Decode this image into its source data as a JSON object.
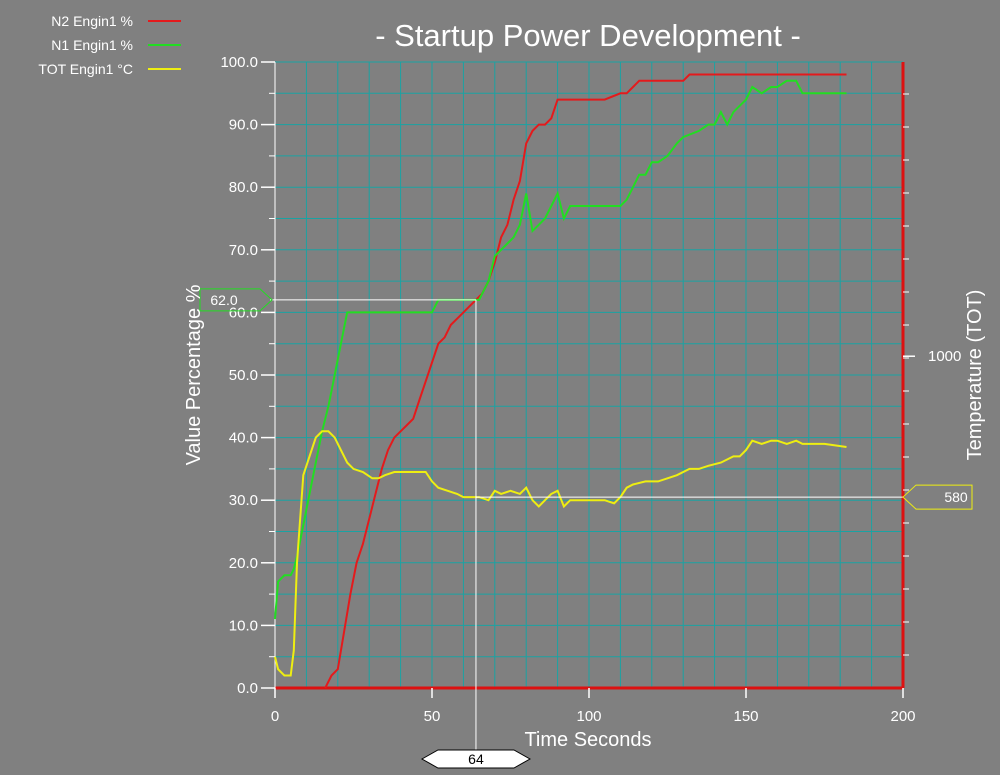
{
  "chart_data": {
    "type": "line",
    "title": "- Startup Power Development -",
    "xlabel": "Time Seconds",
    "ylabel": "Value Percentage %",
    "y2label": "Temperature (TOT)",
    "xlim": [
      0,
      200
    ],
    "ylim": [
      0,
      100
    ],
    "xticks": [
      0,
      50,
      100,
      150,
      200
    ],
    "yticks": [
      0,
      10,
      20,
      30,
      40,
      50,
      60,
      70,
      80,
      90,
      100
    ],
    "ytick_labels": [
      "0.0",
      "10.0",
      "20.0",
      "30.0",
      "40.0",
      "50.0",
      "60.0",
      "70.0",
      "80.0",
      "90.0",
      "100.0"
    ],
    "y2tick_label": "1000",
    "y2tick_value_pct": 53,
    "grid": true,
    "legend_position": "top-left",
    "colors": {
      "background": "#808080",
      "grid": "#1aa3a3",
      "axis": "#dd1111",
      "text": "#ffffff"
    },
    "series": [
      {
        "name": "N2 Engin1 %",
        "color": "#e41a1c",
        "x": [
          16,
          18,
          20,
          22,
          24,
          26,
          28,
          30,
          32,
          34,
          36,
          38,
          40,
          42,
          44,
          46,
          48,
          50,
          52,
          54,
          56,
          58,
          60,
          62,
          64,
          66,
          68,
          70,
          72,
          74,
          76,
          78,
          80,
          82,
          84,
          86,
          88,
          90,
          95,
          100,
          105,
          110,
          112,
          114,
          116,
          120,
          125,
          130,
          132,
          140,
          150,
          160,
          170,
          182
        ],
        "values": [
          0,
          2,
          3,
          9,
          15,
          20,
          23,
          27,
          31,
          35,
          38,
          40,
          41,
          42,
          43,
          46,
          49,
          52,
          55,
          56,
          58,
          59,
          60,
          61,
          62,
          63,
          65,
          68,
          72,
          74,
          78,
          81,
          87,
          89,
          90,
          90,
          91,
          94,
          94,
          94,
          94,
          95,
          95,
          96,
          97,
          97,
          97,
          97,
          98,
          98,
          98,
          98,
          98,
          98
        ]
      },
      {
        "name": "N1 Engin1 %",
        "color": "#22dd22",
        "x": [
          0,
          1,
          3,
          5,
          6,
          7,
          9,
          11,
          13,
          15,
          17,
          19,
          21,
          23,
          25,
          30,
          40,
          50,
          52,
          60,
          65,
          68,
          70,
          72,
          74,
          76,
          78,
          80,
          82,
          84,
          86,
          88,
          90,
          92,
          94,
          96,
          100,
          110,
          112,
          114,
          116,
          118,
          120,
          122,
          125,
          128,
          130,
          135,
          138,
          140,
          142,
          144,
          146,
          148,
          150,
          152,
          155,
          158,
          160,
          163,
          166,
          168,
          170,
          175,
          182
        ],
        "values": [
          11,
          17,
          18,
          18,
          19,
          21,
          26,
          31,
          36,
          41,
          45,
          50,
          55,
          60,
          60,
          60,
          60,
          60,
          62,
          62,
          62,
          65,
          69,
          70,
          71,
          72,
          74,
          79,
          73,
          74,
          75,
          77,
          79,
          75,
          77,
          77,
          77,
          77,
          78,
          80,
          82,
          82,
          84,
          84,
          85,
          87,
          88,
          89,
          90,
          90,
          92,
          90,
          92,
          93,
          94,
          96,
          95,
          96,
          96,
          97,
          97,
          95,
          95,
          95,
          95
        ]
      },
      {
        "name": "TOT Engin1 °C",
        "color": "#eeee11",
        "x": [
          0,
          1,
          3,
          5,
          6,
          7,
          9,
          11,
          13,
          15,
          17,
          19,
          21,
          23,
          25,
          28,
          31,
          33,
          35,
          38,
          40,
          45,
          48,
          50,
          52,
          55,
          58,
          60,
          62,
          65,
          68,
          70,
          72,
          75,
          78,
          80,
          82,
          84,
          86,
          88,
          90,
          92,
          94,
          97,
          100,
          105,
          108,
          110,
          112,
          114,
          118,
          122,
          125,
          128,
          132,
          135,
          138,
          142,
          146,
          148,
          150,
          152,
          155,
          158,
          160,
          163,
          166,
          168,
          170,
          175,
          182
        ],
        "values": [
          5,
          3,
          2,
          2,
          6,
          20,
          34,
          37,
          40,
          41,
          41,
          40,
          38,
          36,
          35,
          34.5,
          33.5,
          33.5,
          34,
          34.5,
          34.5,
          34.5,
          34.5,
          33,
          32,
          31.5,
          31,
          30.5,
          30.5,
          30.5,
          30,
          31.5,
          31,
          31.5,
          31,
          32,
          30,
          29,
          30,
          31,
          31.5,
          29,
          30,
          30,
          30,
          30,
          29.5,
          30.5,
          32,
          32.5,
          33,
          33,
          33.5,
          34,
          35,
          35,
          35.5,
          36,
          37,
          37,
          38,
          39.5,
          39,
          39.5,
          39.5,
          39,
          39.5,
          39,
          39,
          39,
          38.5
        ]
      }
    ],
    "cursors": {
      "x_value": "64",
      "left_value": "62.0",
      "left_y": 62,
      "right_value": "580",
      "right_y": 30.5
    }
  }
}
